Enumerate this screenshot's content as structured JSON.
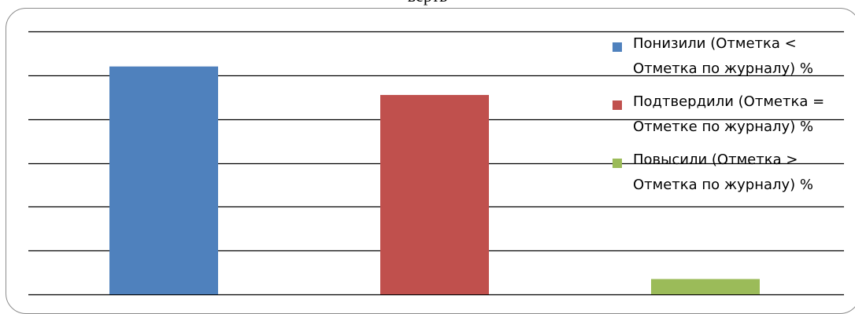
{
  "header_fragment": "верть",
  "chart_data": {
    "type": "bar",
    "categories": [
      "",
      "",
      ""
    ],
    "series": [
      {
        "name": "Понизили (Отметка < Отметка по журналу) %",
        "color": "#4f81bd",
        "value": 52
      },
      {
        "name": "Подтвердили (Отметка = Отметке по журналу) %",
        "color": "#c0504d",
        "value": 45.5
      },
      {
        "name": "Повысили (Отметка > Отметка по журналу) %",
        "color": "#9bbb59",
        "value": 3.5
      }
    ],
    "ylim": [
      0,
      60
    ],
    "gridlines": true,
    "legend": "right"
  }
}
